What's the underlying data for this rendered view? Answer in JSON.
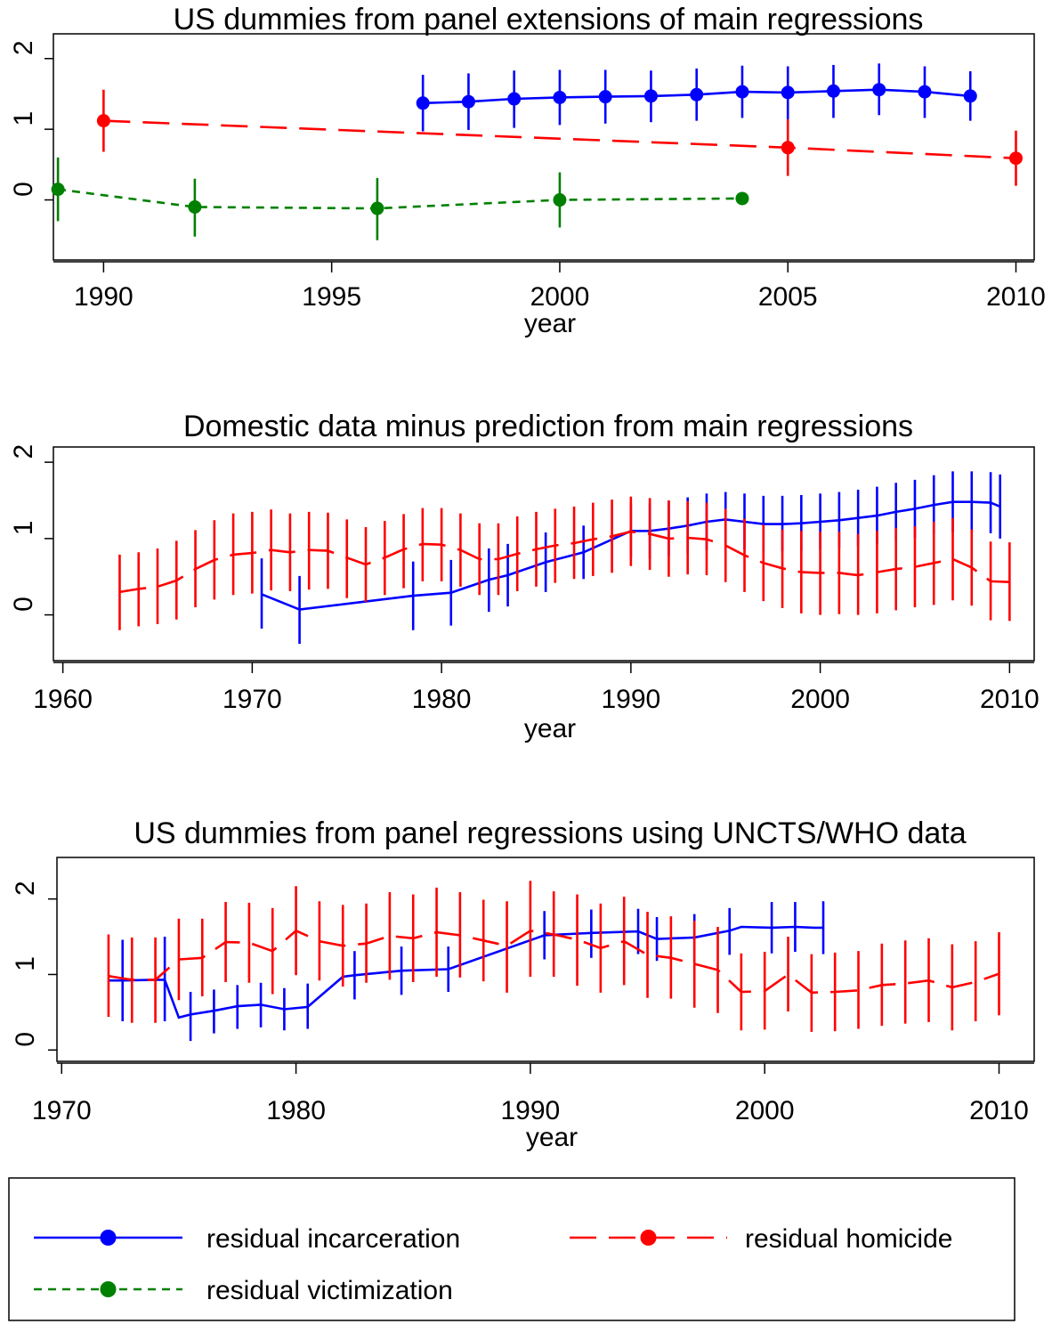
{
  "colors": {
    "incarceration": "#0000ff",
    "homicide": "#ff0000",
    "victimization": "#008000"
  },
  "chart_data": [
    {
      "type": "line",
      "title": "US dummies from panel extensions of main regressions",
      "xlabel": "year",
      "ylabel": "",
      "xlim": [
        1988.9,
        2010.4
      ],
      "ylim": [
        -0.85,
        2.35
      ],
      "xticks": [
        1990,
        1995,
        2000,
        2005,
        2010
      ],
      "yticks": [
        0,
        1,
        2
      ],
      "markers": true,
      "series": [
        {
          "name": "residual incarceration",
          "key": "incarceration",
          "x": [
            1997,
            1998,
            1999,
            2000,
            2001,
            2002,
            2003,
            2004,
            2005,
            2006,
            2007,
            2008,
            2009
          ],
          "y": [
            1.37,
            1.39,
            1.43,
            1.45,
            1.46,
            1.47,
            1.49,
            1.53,
            1.52,
            1.54,
            1.56,
            1.53,
            1.47
          ],
          "lo": [
            0.97,
            0.99,
            1.02,
            1.06,
            1.08,
            1.1,
            1.12,
            1.16,
            1.14,
            1.16,
            1.2,
            1.16,
            1.12
          ],
          "hi": [
            1.77,
            1.79,
            1.83,
            1.84,
            1.84,
            1.83,
            1.86,
            1.9,
            1.89,
            1.91,
            1.93,
            1.89,
            1.82
          ]
        },
        {
          "name": "residual homicide",
          "key": "homicide",
          "x": [
            1990,
            2005,
            2010
          ],
          "y": [
            1.12,
            0.74,
            0.59
          ],
          "lo": [
            0.68,
            0.34,
            0.2
          ],
          "hi": [
            1.56,
            1.14,
            0.98
          ]
        },
        {
          "name": "residual victimization",
          "key": "victimization",
          "x": [
            1989,
            1992,
            1996,
            2000,
            2004
          ],
          "y": [
            0.15,
            -0.1,
            -0.12,
            0.0,
            0.02
          ],
          "lo": [
            -0.3,
            -0.52,
            -0.57,
            -0.39,
            0.02
          ],
          "hi": [
            0.6,
            0.3,
            0.31,
            0.39,
            0.02
          ]
        }
      ]
    },
    {
      "type": "line",
      "title": "Domestic data minus prediction from main regressions",
      "xlabel": "year",
      "ylabel": "",
      "xlim": [
        1959.5,
        2011.3
      ],
      "ylim": [
        -0.6,
        2.2
      ],
      "xticks": [
        1960,
        1970,
        1980,
        1990,
        2000,
        2010
      ],
      "yticks": [
        0,
        1,
        2
      ],
      "markers": false,
      "series": [
        {
          "name": "residual incarceration",
          "key": "incarceration",
          "x": [
            1970.5,
            1972.5,
            1978.5,
            1980.5,
            1982.5,
            1983.5,
            1985.5,
            1987.5,
            1990,
            1991,
            1992,
            1993,
            1994,
            1995,
            1996,
            1997,
            1998,
            1999,
            2000,
            2001,
            2002,
            2003,
            2004,
            2005,
            2006,
            2007,
            2008,
            2009,
            2009.5
          ],
          "y": [
            0.27,
            0.07,
            0.25,
            0.29,
            0.46,
            0.52,
            0.69,
            0.82,
            1.1,
            1.1,
            1.13,
            1.17,
            1.22,
            1.25,
            1.22,
            1.19,
            1.19,
            1.2,
            1.22,
            1.24,
            1.27,
            1.3,
            1.35,
            1.39,
            1.44,
            1.48,
            1.48,
            1.47,
            1.42
          ],
          "lo": [
            -0.18,
            -0.38,
            -0.2,
            -0.14,
            0.04,
            0.11,
            0.3,
            0.47,
            0.75,
            0.74,
            0.77,
            0.8,
            0.85,
            0.89,
            0.86,
            0.83,
            0.83,
            0.84,
            0.86,
            0.88,
            0.9,
            0.93,
            0.97,
            1.01,
            1.05,
            1.08,
            1.08,
            1.07,
            1.0
          ],
          "hi": [
            0.74,
            0.51,
            0.7,
            0.72,
            0.87,
            0.93,
            1.08,
            1.17,
            1.45,
            1.46,
            1.49,
            1.54,
            1.59,
            1.61,
            1.59,
            1.56,
            1.56,
            1.57,
            1.59,
            1.61,
            1.64,
            1.68,
            1.73,
            1.77,
            1.83,
            1.88,
            1.88,
            1.87,
            1.84
          ]
        },
        {
          "name": "residual homicide",
          "key": "homicide",
          "x": [
            1963,
            1964,
            1965,
            1966,
            1967,
            1968,
            1969,
            1970,
            1971,
            1972,
            1973,
            1974,
            1975,
            1976,
            1977,
            1978,
            1979,
            1980,
            1981,
            1982,
            1983,
            1984,
            1985,
            1986,
            1987,
            1988,
            1989,
            1990,
            1991,
            1992,
            1993,
            1994,
            1995,
            1996,
            1997,
            1998,
            1999,
            2000,
            2001,
            2002,
            2003,
            2004,
            2005,
            2006,
            2007,
            2008,
            2009,
            2010
          ],
          "y": [
            0.3,
            0.34,
            0.37,
            0.45,
            0.6,
            0.72,
            0.79,
            0.81,
            0.85,
            0.82,
            0.85,
            0.84,
            0.75,
            0.66,
            0.75,
            0.86,
            0.93,
            0.92,
            0.85,
            0.73,
            0.73,
            0.8,
            0.86,
            0.91,
            0.94,
            0.99,
            1.03,
            1.09,
            1.06,
            1.0,
            1.01,
            0.99,
            0.91,
            0.78,
            0.68,
            0.61,
            0.56,
            0.55,
            0.55,
            0.52,
            0.56,
            0.6,
            0.63,
            0.68,
            0.73,
            0.62,
            0.44,
            0.43
          ],
          "lo": [
            -0.2,
            -0.15,
            -0.12,
            -0.06,
            0.1,
            0.2,
            0.26,
            0.28,
            0.32,
            0.31,
            0.33,
            0.34,
            0.22,
            0.17,
            0.26,
            0.35,
            0.44,
            0.44,
            0.37,
            0.26,
            0.26,
            0.31,
            0.37,
            0.42,
            0.47,
            0.51,
            0.55,
            0.64,
            0.59,
            0.5,
            0.53,
            0.52,
            0.43,
            0.3,
            0.18,
            0.09,
            0.02,
            0.0,
            0.01,
            0.0,
            0.02,
            0.06,
            0.1,
            0.13,
            0.19,
            0.12,
            -0.07,
            -0.08
          ],
          "hi": [
            0.79,
            0.82,
            0.87,
            0.97,
            1.11,
            1.24,
            1.33,
            1.35,
            1.38,
            1.33,
            1.35,
            1.34,
            1.25,
            1.15,
            1.23,
            1.32,
            1.4,
            1.4,
            1.33,
            1.2,
            1.2,
            1.29,
            1.35,
            1.39,
            1.42,
            1.47,
            1.51,
            1.55,
            1.53,
            1.5,
            1.49,
            1.47,
            1.39,
            1.26,
            1.18,
            1.12,
            1.1,
            1.09,
            1.09,
            1.06,
            1.1,
            1.14,
            1.16,
            1.22,
            1.27,
            1.12,
            0.96,
            0.95
          ]
        }
      ]
    },
    {
      "type": "line",
      "title": "US dummies from panel regressions using UNCTS/WHO data",
      "xlabel": "year",
      "ylabel": "",
      "xlim": [
        1969.8,
        2011.5
      ],
      "ylim": [
        -0.15,
        2.55
      ],
      "xticks": [
        1970,
        1980,
        1990,
        2000,
        2010
      ],
      "yticks": [
        0,
        1,
        2
      ],
      "markers": false,
      "series": [
        {
          "name": "residual incarceration",
          "key": "incarceration",
          "x": [
            1972,
            1972.6,
            1974,
            1974.4,
            1975,
            1975.5,
            1976.5,
            1977.5,
            1978.5,
            1979.5,
            1980.5,
            1982,
            1982.5,
            1984.5,
            1986.5,
            1990.6,
            1992.6,
            1994.6,
            1995.4,
            1997,
            1998.5,
            1999,
            2000.3,
            2001.3,
            2002.1,
            2002.5
          ],
          "y": [
            0.92,
            0.92,
            0.93,
            0.93,
            0.43,
            0.47,
            0.52,
            0.58,
            0.6,
            0.54,
            0.57,
            0.97,
            0.99,
            1.05,
            1.07,
            1.52,
            1.55,
            1.57,
            1.47,
            1.49,
            1.58,
            1.63,
            1.62,
            1.63,
            1.62,
            1.62
          ],
          "lo": [
            0.92,
            0.38,
            0.93,
            0.38,
            0.43,
            0.12,
            0.22,
            0.28,
            0.3,
            0.26,
            0.28,
            0.97,
            0.67,
            0.73,
            0.77,
            1.2,
            1.22,
            1.27,
            1.18,
            1.18,
            1.26,
            1.63,
            1.28,
            1.3,
            1.62,
            1.27
          ],
          "hi": [
            0.92,
            1.46,
            0.93,
            1.5,
            0.43,
            0.77,
            0.8,
            0.86,
            0.89,
            0.82,
            0.88,
            0.97,
            1.31,
            1.37,
            1.37,
            1.84,
            1.86,
            1.87,
            1.76,
            1.8,
            1.88,
            1.63,
            1.96,
            1.96,
            1.62,
            1.97
          ]
        },
        {
          "name": "residual homicide",
          "key": "homicide",
          "x": [
            1972,
            1973,
            1974,
            1975,
            1976,
            1977,
            1978,
            1979,
            1980,
            1981,
            1982,
            1983,
            1984,
            1985,
            1986,
            1987,
            1988,
            1989,
            1990,
            1991,
            1992,
            1993,
            1994,
            1995,
            1996,
            1997,
            1998,
            1999,
            2000,
            2001,
            2002,
            2003,
            2004,
            2005,
            2006,
            2007,
            2008,
            2009,
            2010
          ],
          "y": [
            0.98,
            0.93,
            0.93,
            1.2,
            1.22,
            1.43,
            1.42,
            1.31,
            1.58,
            1.44,
            1.38,
            1.41,
            1.51,
            1.48,
            1.56,
            1.52,
            1.45,
            1.38,
            1.58,
            1.53,
            1.46,
            1.35,
            1.44,
            1.26,
            1.22,
            1.14,
            1.06,
            0.77,
            0.78,
            1.0,
            0.76,
            0.77,
            0.79,
            0.86,
            0.88,
            0.92,
            0.83,
            0.9,
            1.01
          ],
          "lo": [
            0.44,
            0.36,
            0.36,
            0.66,
            0.71,
            0.9,
            0.89,
            0.74,
            0.99,
            0.92,
            0.84,
            0.89,
            0.93,
            0.9,
            0.97,
            0.96,
            0.91,
            0.76,
            0.97,
            0.97,
            0.85,
            0.76,
            0.86,
            0.69,
            0.68,
            0.56,
            0.49,
            0.26,
            0.27,
            0.51,
            0.24,
            0.25,
            0.28,
            0.32,
            0.35,
            0.37,
            0.26,
            0.38,
            0.46
          ],
          "hi": [
            1.53,
            1.49,
            1.49,
            1.74,
            1.74,
            1.96,
            1.95,
            1.88,
            2.17,
            1.97,
            1.92,
            1.94,
            2.09,
            2.06,
            2.15,
            2.09,
            1.99,
            1.97,
            2.24,
            2.1,
            2.06,
            1.94,
            2.03,
            1.83,
            1.77,
            1.71,
            1.63,
            1.28,
            1.3,
            1.5,
            1.27,
            1.29,
            1.31,
            1.41,
            1.45,
            1.48,
            1.4,
            1.44,
            1.56
          ]
        }
      ]
    }
  ],
  "legend": {
    "items": [
      {
        "label": "residual incarceration",
        "key": "incarceration",
        "dash": "none"
      },
      {
        "label": "residual homicide",
        "key": "homicide",
        "dash": "long"
      },
      {
        "label": "residual victimization",
        "key": "victimization",
        "dash": "short"
      }
    ]
  }
}
